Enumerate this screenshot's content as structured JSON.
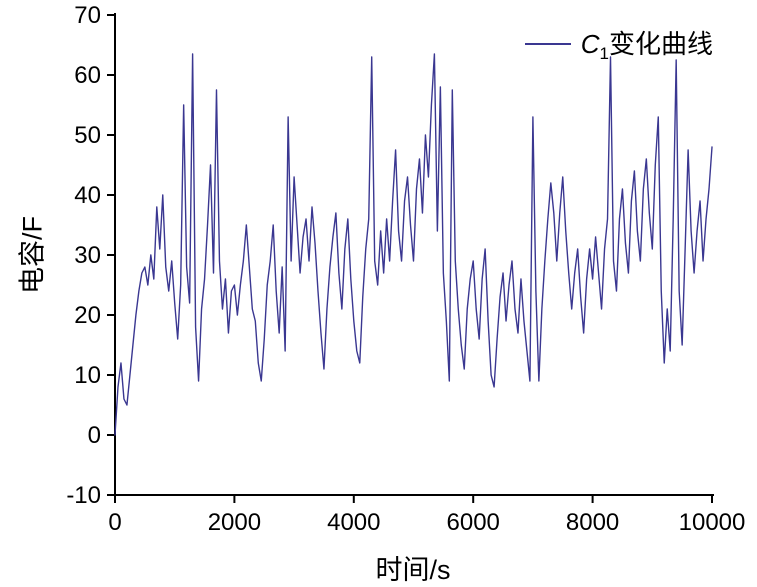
{
  "chart_data": {
    "type": "line",
    "title": "",
    "xlabel": "时间/s",
    "ylabel": "电容/F",
    "xlim": [
      0,
      10000
    ],
    "ylim": [
      -10,
      70
    ],
    "xticks": [
      0,
      2000,
      4000,
      6000,
      8000,
      10000
    ],
    "yticks": [
      -10,
      0,
      10,
      20,
      30,
      40,
      50,
      60,
      70
    ],
    "grid": false,
    "legend_position": "top-right",
    "legend": {
      "label_c": "C",
      "label_sub": "1",
      "label_rest": "变化曲线"
    },
    "series": [
      {
        "name": "C1变化曲线",
        "color": "#3a3791",
        "x_start": 0,
        "x_step": 50,
        "values": [
          0,
          8,
          12,
          6,
          5,
          10,
          15,
          20,
          24,
          27,
          28,
          25,
          30,
          26,
          38,
          31,
          40,
          28,
          24,
          29,
          22,
          16,
          25,
          55,
          28,
          22,
          63.5,
          18,
          9,
          21,
          26,
          35,
          45,
          27,
          57.5,
          29,
          21,
          26,
          17,
          24,
          25,
          20,
          25,
          29,
          35,
          28,
          21,
          19,
          12,
          9,
          16,
          25,
          29,
          35,
          24,
          17,
          28,
          14,
          53,
          29,
          43,
          35,
          27,
          33,
          36,
          29,
          38,
          32,
          24,
          17,
          11,
          21,
          28,
          33,
          37,
          27,
          21,
          31,
          36,
          26,
          19,
          14,
          12,
          23,
          31,
          36,
          63,
          29,
          25,
          34,
          27,
          36,
          29,
          39,
          47.5,
          34,
          29,
          39,
          43,
          35,
          29,
          41,
          46,
          37,
          50,
          43,
          55,
          63.5,
          34,
          58,
          27,
          19,
          9,
          57.5,
          29,
          21,
          15,
          11,
          21,
          26,
          29,
          21,
          16,
          26,
          31,
          19,
          10,
          8,
          16,
          23,
          27,
          19,
          25,
          29,
          21,
          17,
          26,
          19,
          14,
          9,
          53,
          24,
          9,
          21,
          29,
          36,
          42,
          37,
          29,
          37,
          43,
          34,
          27,
          21,
          27,
          31,
          23,
          17,
          26,
          31,
          26,
          33,
          27,
          21,
          31,
          36,
          63,
          29,
          24,
          36,
          41,
          32,
          27,
          39,
          44,
          34,
          29,
          41,
          46,
          37,
          31,
          45,
          53,
          24,
          12,
          21,
          14,
          36,
          62.5,
          24,
          15,
          31,
          47.5,
          34,
          27,
          34,
          39,
          29,
          36,
          41,
          48
        ]
      }
    ]
  },
  "colors": {
    "line": "#3a3791",
    "axis": "#000000",
    "background": "#ffffff"
  }
}
